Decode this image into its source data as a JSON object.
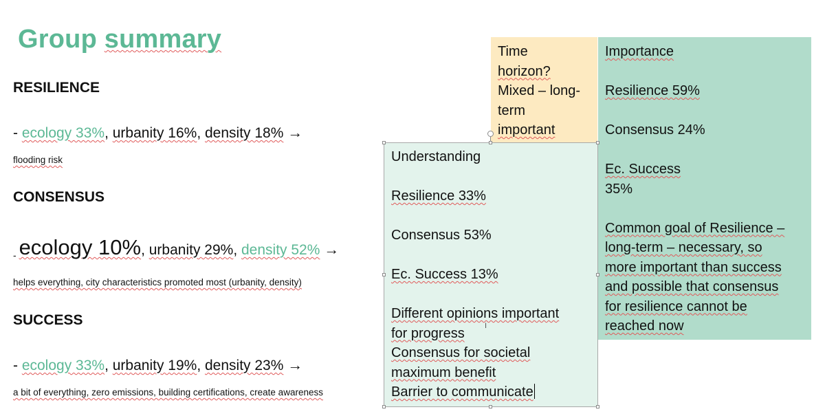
{
  "title": {
    "part1": "Group",
    "part2": "summary"
  },
  "resilience": {
    "heading": "RESILIENCE",
    "dash": "- ",
    "ecology": "ecology 33%",
    "urbanity": "urbanity 16%",
    "density": "density 18%",
    "arrow": "→",
    "note": "flooding risk"
  },
  "consensus": {
    "heading": "CONSENSUS",
    "dash": "- ",
    "ecology": "ecology 10%",
    "urbanity": "urbanity 29%",
    "density": "density 52%",
    "arrow": "→",
    "note": "helps everything, city characteristics promoted most (urbanity, density)"
  },
  "success": {
    "heading": "SUCCESS",
    "dash": "- ",
    "ecology": "ecology 33%",
    "urbanity": "urbanity 19%",
    "density": "density 23%",
    "arrow": "→",
    "note": "a bit of everything, zero emissions, building certifications, create awareness"
  },
  "time_horizon_box": {
    "lines": [
      "Time",
      "horizon?",
      "Mixed – long-",
      "term",
      "important"
    ]
  },
  "importance_box": {
    "heading": "Importance",
    "resilience": "Resilience 59%",
    "consensus": "Consensus 24%",
    "ec_success_label": "Ec. Success",
    "ec_success_value": "35%",
    "paragraph_lines": [
      "Common goal of Resilience –",
      "long-term – necessary, so",
      "more important than success",
      "and possible that consensus",
      "for resilience cannot be",
      "reached now"
    ]
  },
  "understanding_box": {
    "heading": "Understanding",
    "resilience": "Resilience 33%",
    "consensus": "Consensus 53%",
    "ec_success": "Ec. Success 13%",
    "lines": [
      "Different opinions important",
      "for progress",
      "Consensus for societal",
      "maximum benefit",
      "Barrier to communicate"
    ]
  },
  "colors": {
    "accent_green": "#5cb895",
    "yellow_box": "#fdeac1",
    "green_box": "#b1dccb",
    "light_box": "#e3f3ec"
  }
}
